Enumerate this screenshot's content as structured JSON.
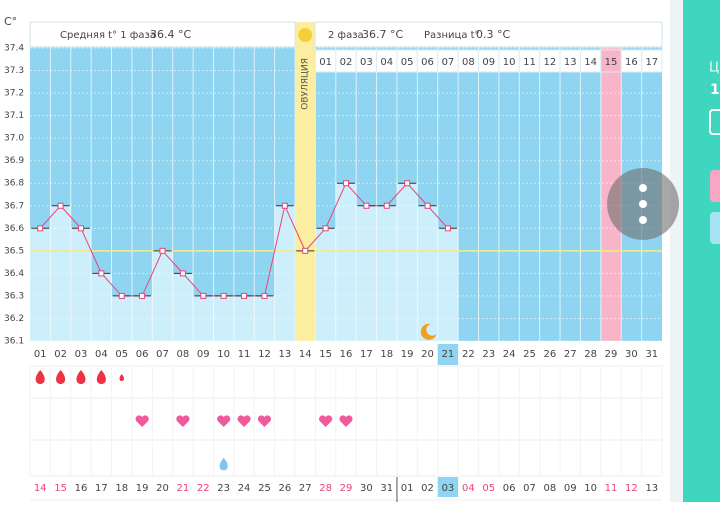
{
  "header": {
    "phase1_label": "Средняя t° 1 фаза",
    "phase1_value": "36.4 °C",
    "phase2_label": "2 фаза",
    "phase2_value": "36.7 °C",
    "diff_label": "Разница t°",
    "diff_value": "0.3 °C"
  },
  "right_panel": {
    "label": "Ц",
    "value": "1"
  },
  "chart_data": {
    "type": "line",
    "y_unit": "C°",
    "ovulation_label": "ОВУЛЯЦИЯ",
    "categories": [
      "01",
      "02",
      "03",
      "04",
      "05",
      "06",
      "07",
      "08",
      "09",
      "10",
      "11",
      "12",
      "13",
      "14",
      "15",
      "16",
      "17",
      "18",
      "19",
      "20",
      "21",
      "22",
      "23",
      "24",
      "25",
      "26",
      "27",
      "28",
      "29",
      "30",
      "31"
    ],
    "values": [
      36.6,
      36.7,
      36.6,
      36.4,
      36.3,
      36.3,
      36.5,
      36.4,
      36.3,
      36.3,
      36.3,
      36.3,
      36.7,
      36.5,
      36.6,
      36.8,
      36.7,
      36.7,
      36.8,
      36.7,
      36.6,
      null,
      null,
      null,
      null,
      null,
      null,
      null,
      null,
      null,
      null
    ],
    "phase2_days": [
      "01",
      "02",
      "03",
      "04",
      "05",
      "06",
      "07",
      "08",
      "09",
      "10",
      "11",
      "12",
      "13",
      "14",
      "15",
      "16",
      "17"
    ],
    "cover_line": 36.5,
    "color": "#e8457a",
    "cover_color": "#f2ec8a",
    "ylim": [
      36.1,
      37.4
    ],
    "yticks": [
      36.1,
      36.2,
      36.3,
      36.4,
      36.5,
      36.6,
      36.7,
      36.8,
      36.9,
      {
        "value": 37,
        "label": "37.0"
      },
      37.1,
      37.2,
      37.3,
      37.4
    ],
    "ovulation_index": 13,
    "today_index": 20,
    "fertile_index": 28,
    "bleeding": [
      1,
      1,
      1,
      1,
      0.5,
      0,
      0,
      0,
      0,
      0,
      0,
      0,
      0,
      0,
      0,
      0,
      0,
      0,
      0,
      0,
      0,
      0,
      0,
      0,
      0,
      0,
      0,
      0,
      0,
      0,
      0
    ],
    "hearts": [
      5,
      7,
      9,
      10,
      11,
      14,
      15
    ],
    "discharge": [
      9
    ],
    "night_index": 19,
    "calendar_dates": [
      "14",
      "15",
      "16",
      "17",
      "18",
      "19",
      "20",
      "21",
      "22",
      "23",
      "24",
      "25",
      "26",
      "27",
      "28",
      "29",
      "30",
      "31",
      "01",
      "02",
      "03",
      "04",
      "05",
      "06",
      "07",
      "08",
      "09",
      "10",
      "11",
      "12",
      "13"
    ],
    "weekend_indexes": [
      0,
      1,
      7,
      8,
      14,
      15,
      21,
      22,
      28,
      29
    ],
    "today_date_index": 20,
    "month_break_index": 18
  }
}
